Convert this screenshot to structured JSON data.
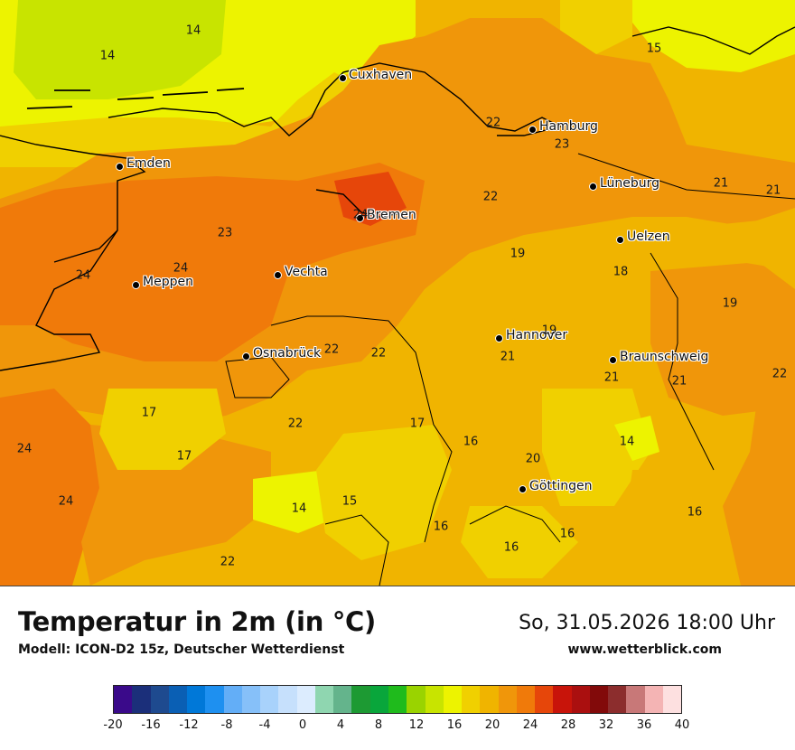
{
  "title": "Temperatur in 2m (in °C)",
  "model": "Modell: ICON-D2 15z, Deutscher Wetterdienst",
  "datetime": "So, 31.05.2026 18:00 Uhr",
  "website": "www.wetterblick.com",
  "legend": {
    "ticks": [
      "-20",
      "-16",
      "-12",
      "-8",
      "-4",
      "0",
      "4",
      "8",
      "12",
      "16",
      "20",
      "24",
      "28",
      "32",
      "36",
      "40"
    ],
    "colors": [
      "#3a0a8a",
      "#1b2f7a",
      "#1e4a8f",
      "#0a5fb4",
      "#0078d8",
      "#1e90f0",
      "#63aef7",
      "#86c0f9",
      "#a8d2fb",
      "#c6e0fc",
      "#dcecfe",
      "#8fd6b0",
      "#64b48c",
      "#1d9a33",
      "#09a63b",
      "#1fbb1c",
      "#9ad300",
      "#c8e400",
      "#edf300",
      "#f0d000",
      "#f0b400",
      "#f0960a",
      "#f07a0a",
      "#e6460a",
      "#c8140a",
      "#aa0f0f",
      "#820a0a",
      "#8c2d2d",
      "#c87878",
      "#f4b4b4",
      "#fde0e0"
    ]
  },
  "cities": [
    {
      "name": "Cuxhaven"
    },
    {
      "name": "Hamburg"
    },
    {
      "name": "Emden"
    },
    {
      "name": "Lüneburg"
    },
    {
      "name": "Bremen"
    },
    {
      "name": "Uelzen"
    },
    {
      "name": "Vechta"
    },
    {
      "name": "Meppen"
    },
    {
      "name": "Hannover"
    },
    {
      "name": "Osnabrück"
    },
    {
      "name": "Braunschweig"
    },
    {
      "name": "Göttingen"
    }
  ],
  "map_values": [
    "14",
    "14",
    "15",
    "22",
    "23",
    "21",
    "21",
    "22",
    "24",
    "23",
    "24",
    "24",
    "19",
    "18",
    "19",
    "19",
    "21",
    "22",
    "22",
    "21",
    "21",
    "22",
    "17",
    "22",
    "17",
    "16",
    "20",
    "14",
    "24",
    "17",
    "24",
    "15",
    "14",
    "16",
    "16",
    "16",
    "16",
    "22"
  ]
}
